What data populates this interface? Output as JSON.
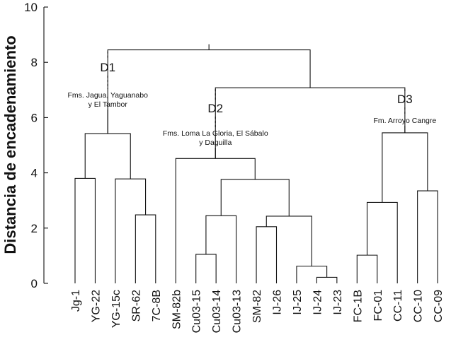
{
  "chart_data": {
    "type": "dendrogram",
    "ylabel": "Distancia de encadenamiento",
    "ylim": [
      0,
      10
    ],
    "yticks": [
      0,
      2,
      4,
      6,
      8,
      10
    ],
    "leaves": [
      "Jg-1",
      "YG-22",
      "YG-15c",
      "SR-62",
      "7C-8B",
      "SM-82b",
      "Cu03-15",
      "Cu03-14",
      "Cu03-13",
      "SM-82",
      "IJ-26",
      "IJ-25",
      "IJ-24",
      "IJ-23",
      "FC-1B",
      "FC-01",
      "CC-11",
      "CC-10",
      "CC-09"
    ],
    "merges": [
      {
        "a": "L:Cu03-15",
        "b": "L:Cu03-14",
        "h": 1.05,
        "id": "m1"
      },
      {
        "a": "L:IJ-24",
        "b": "L:IJ-23",
        "h": 0.22,
        "id": "m2"
      },
      {
        "a": "L:FC-1B",
        "b": "L:FC-01",
        "h": 1.02,
        "id": "m3"
      },
      {
        "a": "L:IJ-25",
        "b": "C:m2",
        "h": 0.62,
        "id": "m4"
      },
      {
        "a": "L:SM-82",
        "b": "L:IJ-26",
        "h": 2.05,
        "id": "m5"
      },
      {
        "a": "C:m1",
        "b": "L:Cu03-13",
        "h": 2.45,
        "id": "m6"
      },
      {
        "a": "C:m5",
        "b": "C:m4",
        "h": 2.43,
        "id": "m7"
      },
      {
        "a": "L:SR-62",
        "b": "L:7C-8B",
        "h": 2.48,
        "id": "m8"
      },
      {
        "a": "C:m3",
        "b": "L:CC-11",
        "h": 2.93,
        "id": "m9"
      },
      {
        "a": "L:CC-10",
        "b": "L:CC-09",
        "h": 3.35,
        "id": "m10"
      },
      {
        "a": "L:YG-15c",
        "b": "C:m8",
        "h": 3.78,
        "id": "m11"
      },
      {
        "a": "C:m6",
        "b": "C:m7",
        "h": 3.76,
        "id": "m12"
      },
      {
        "a": "L:Jg-1",
        "b": "L:YG-22",
        "h": 3.8,
        "id": "m13"
      },
      {
        "a": "L:SM-82b",
        "b": "C:m12",
        "h": 4.52,
        "id": "m14"
      },
      {
        "a": "C:m13",
        "b": "C:m11",
        "h": 5.42,
        "id": "m15"
      },
      {
        "a": "C:m9",
        "b": "C:m10",
        "h": 5.45,
        "id": "m16"
      },
      {
        "a": "C:m14",
        "b": "C:m16",
        "h": 7.08,
        "id": "m17"
      },
      {
        "a": "C:m15",
        "b": "C:m17",
        "h": 8.45,
        "id": "m18"
      }
    ],
    "clusters": [
      {
        "label": "D1",
        "annotation_lines": [
          "Fms. Jagua, Yaguanabo",
          "y El Tambor"
        ],
        "node": "m15"
      },
      {
        "label": "D2",
        "annotation_lines": [
          "Fms. Loma La Gloria, El Sábalo",
          "y Daguilla"
        ],
        "node": "m14"
      },
      {
        "label": "D3",
        "annotation_lines": [
          "Fm. Arroyo Cangre"
        ],
        "node": "m16"
      }
    ]
  }
}
